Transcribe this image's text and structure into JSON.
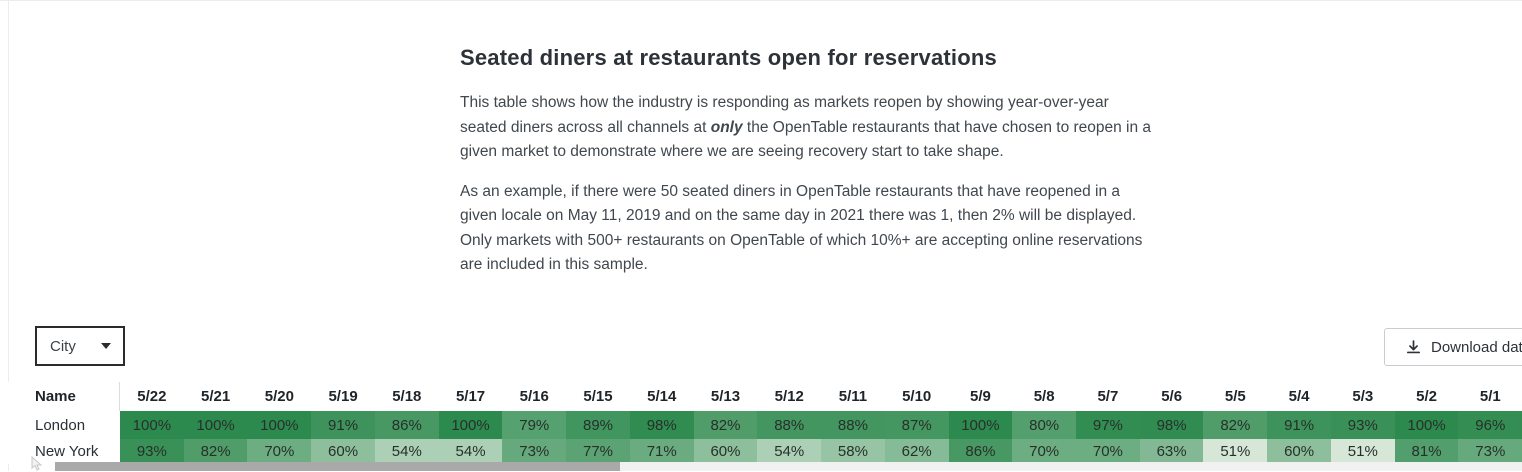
{
  "header": {
    "title": "Seated diners at restaurants open for reservations"
  },
  "description": {
    "p1_before": "This table shows how the industry is responding as markets reopen by showing year-over-year seated diners across all channels at ",
    "p1_emphasis": "only",
    "p1_after": " the OpenTable restaurants that have chosen to reopen in a given market to demonstrate where we are seeing recovery start to take shape.",
    "p2": "As an example, if there were 50 seated diners in OpenTable restaurants that have reopened in a given locale on May 11, 2019 and on the same day in 2021 there was 1, then 2% will be displayed. Only markets with 500+ restaurants on OpenTable of which 10%+ are accepting online reservations are included in this sample."
  },
  "controls": {
    "city_filter": {
      "value": "City",
      "icon": "caret-down-icon"
    },
    "download_button": {
      "label": "Download data",
      "icon": "download-icon"
    }
  },
  "chart_data": {
    "type": "heatmap",
    "title": "Seated diners at restaurants open for reservations (year-over-year %)",
    "row_header_label": "Name",
    "categories": [
      "5/22",
      "5/21",
      "5/20",
      "5/19",
      "5/18",
      "5/17",
      "5/16",
      "5/15",
      "5/14",
      "5/13",
      "5/12",
      "5/11",
      "5/10",
      "5/9",
      "5/8",
      "5/7",
      "5/6",
      "5/5",
      "5/4",
      "5/3",
      "5/2",
      "5/1"
    ],
    "series": [
      {
        "name": "London",
        "values": [
          100,
          100,
          100,
          91,
          86,
          100,
          79,
          89,
          98,
          82,
          88,
          88,
          87,
          100,
          80,
          97,
          98,
          82,
          91,
          93,
          100,
          96
        ]
      },
      {
        "name": "New York",
        "values": [
          93,
          82,
          70,
          60,
          54,
          54,
          73,
          77,
          71,
          60,
          54,
          58,
          62,
          86,
          70,
          70,
          63,
          51,
          60,
          51,
          81,
          73
        ]
      }
    ],
    "value_suffix": "%",
    "color_scale": {
      "min_value": 51,
      "max_value": 100,
      "light_color": "#d6e7d8",
      "dark_color": "#2d8a4e",
      "curve": "sqrt"
    }
  }
}
